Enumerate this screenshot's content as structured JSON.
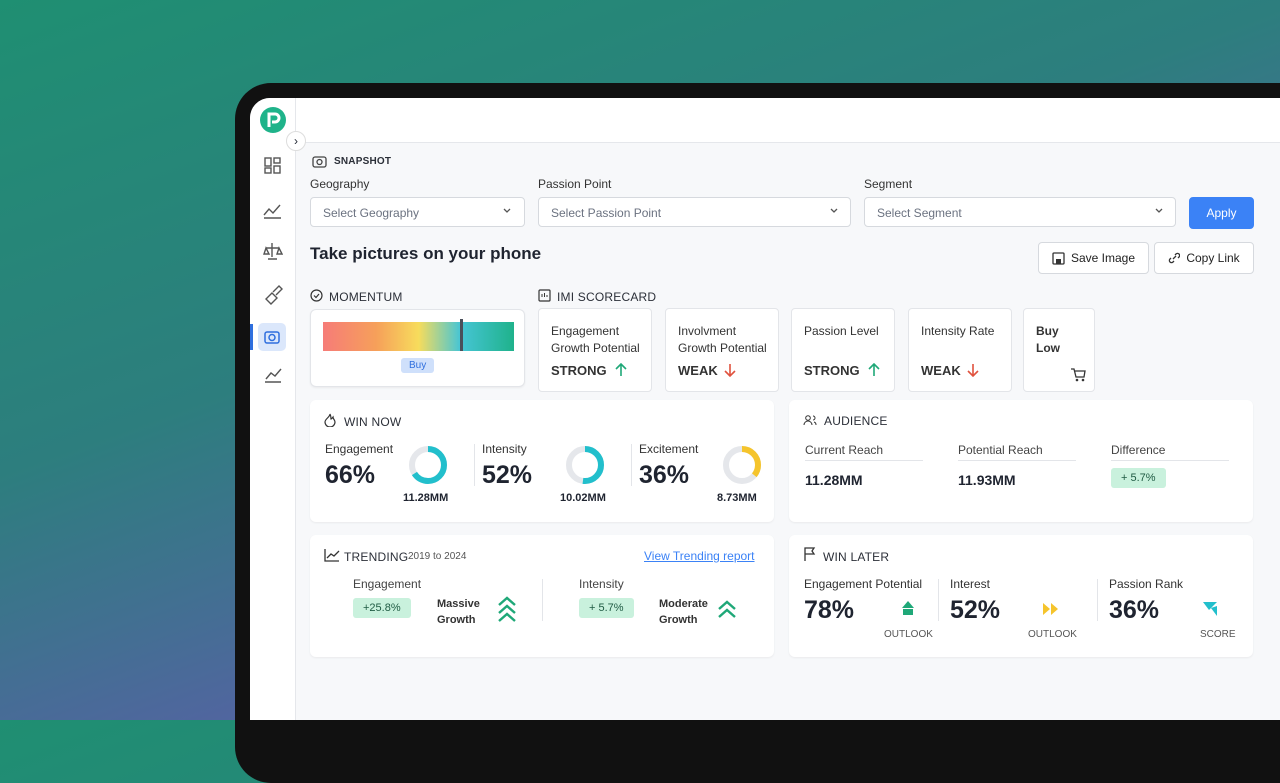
{
  "snapshot": {
    "title": "SNAPSHOT",
    "filters": [
      {
        "label": "Geography",
        "placeholder": "Select Geography"
      },
      {
        "label": "Passion Point",
        "placeholder": "Select Passion Point"
      },
      {
        "label": "Segment",
        "placeholder": "Select Segment"
      }
    ],
    "apply": "Apply"
  },
  "heading": "Take pictures on your phone",
  "actions": [
    "Save Image",
    "Copy Link"
  ],
  "momentum": {
    "title": "MOMENTUM",
    "badge": "Buy"
  },
  "scorecard": {
    "title": "IMI SCORECARD",
    "items": [
      {
        "label": "Engagement Growth Potential",
        "status": "STRONG",
        "trend": "up"
      },
      {
        "label": "Involvment Growth Potential",
        "status": "WEAK",
        "trend": "down"
      },
      {
        "label": "Passion Level",
        "status": "STRONG",
        "trend": "up"
      },
      {
        "label": "Intensity Rate",
        "status": "WEAK",
        "trend": "down"
      }
    ],
    "buy_low": "Buy Low"
  },
  "win_now": {
    "title": "WIN NOW",
    "metrics": [
      {
        "name": "Engagement",
        "value": 66,
        "label": "66%",
        "reach": "11.28MM",
        "color": "#22bfcc"
      },
      {
        "name": "Intensity",
        "value": 52,
        "label": "52%",
        "reach": "10.02MM",
        "color": "#22bfcc"
      },
      {
        "name": "Excitement",
        "value": 36,
        "label": "36%",
        "reach": "8.73MM",
        "color": "#f5c42c"
      }
    ]
  },
  "audience": {
    "title": "AUDIENCE",
    "columns": [
      {
        "label": "Current Reach",
        "value": "11.28MM"
      },
      {
        "label": "Potential Reach",
        "value": "11.93MM"
      },
      {
        "label": "Difference",
        "value": "+ 5.7%"
      }
    ]
  },
  "trending": {
    "title": "TRENDING",
    "range": "2019 to 2024",
    "link": "View Trending report",
    "items": [
      {
        "name": "Engagement",
        "change": "+25.8%",
        "status": "Massive Growth"
      },
      {
        "name": "Intensity",
        "change": "+ 5.7%",
        "status": "Moderate Growth"
      }
    ]
  },
  "win_later": {
    "title": "WIN LATER",
    "items": [
      {
        "name": "Engagement Potential",
        "value": "78%",
        "caption": "OUTLOOK"
      },
      {
        "name": "Interest",
        "value": "52%",
        "caption": "OUTLOOK"
      },
      {
        "name": "Passion Rank",
        "value": "36%",
        "caption": "SCORE"
      }
    ]
  }
}
